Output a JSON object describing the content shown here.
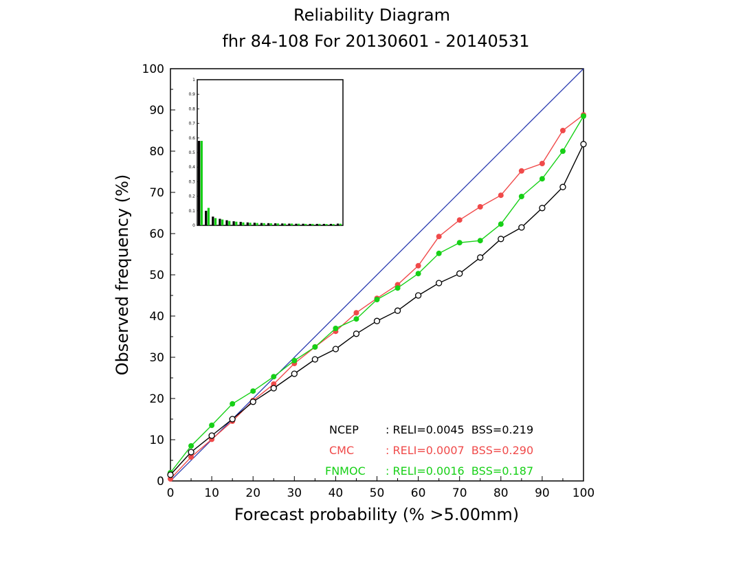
{
  "chart_data": {
    "type": "line",
    "title": "Reliability Diagram",
    "subtitle": "fhr 84-108 For 20130601 - 20140531",
    "xlabel": "Forecast probability (% >5.00mm)",
    "ylabel": "Observed frequency (%)",
    "xlim": [
      0,
      100
    ],
    "ylim": [
      0,
      100
    ],
    "xticks": [
      "0",
      "10",
      "20",
      "30",
      "40",
      "50",
      "60",
      "70",
      "80",
      "90",
      "100"
    ],
    "yticks": [
      "0",
      "10",
      "20",
      "30",
      "40",
      "50",
      "60",
      "70",
      "80",
      "90",
      "100"
    ],
    "grid": false,
    "diagonal_color": "#2a3bb0",
    "x": [
      0,
      5,
      10,
      15,
      20,
      25,
      30,
      35,
      40,
      45,
      50,
      55,
      60,
      65,
      70,
      75,
      80,
      85,
      90,
      95,
      100
    ],
    "series": [
      {
        "name": "NCEP",
        "color": "#000000",
        "marker": "open-circle",
        "values": [
          1.5,
          7.0,
          11.0,
          15.0,
          19.2,
          22.5,
          26.0,
          29.5,
          32.0,
          35.7,
          38.8,
          41.3,
          45.0,
          48.0,
          50.3,
          54.2,
          58.7,
          61.5,
          66.2,
          71.3,
          81.7
        ],
        "stats": ": RELI=0.0045  BSS=0.219"
      },
      {
        "name": "CMC",
        "color": "#f04a4a",
        "marker": "filled-circle",
        "values": [
          0.5,
          5.8,
          10.1,
          14.5,
          19.5,
          23.5,
          28.5,
          32.5,
          36.3,
          40.8,
          44.3,
          47.6,
          52.2,
          59.3,
          63.3,
          66.5,
          69.3,
          75.2,
          77.0,
          85.0,
          88.8
        ]
      },
      {
        "name": "FNMOC",
        "color": "#16d016",
        "marker": "filled-circle",
        "values": [
          2.0,
          8.5,
          13.5,
          18.7,
          21.8,
          25.3,
          29.2,
          32.5,
          37.0,
          39.3,
          44.0,
          46.8,
          50.3,
          55.2,
          57.8,
          58.3,
          62.3,
          69.0,
          73.3,
          80.0,
          88.5
        ]
      }
    ],
    "legend": {
      "placement": "bottom-right",
      "entries": [
        {
          "name": "NCEP",
          "stats": ": RELI=0.0045  BSS=0.219",
          "color": "#000000"
        },
        {
          "name": "CMC",
          "stats": ": RELI=0.0007  BSS=0.290",
          "color": "#f04a4a"
        },
        {
          "name": "FNMOC",
          "stats": ": RELI=0.0016  BSS=0.187",
          "color": "#16d016"
        }
      ]
    },
    "inset": {
      "type": "bar",
      "placement": "top-left",
      "ylim": [
        0,
        1
      ],
      "yticks": [
        "0",
        "0.1",
        "0.2",
        "0.3",
        "0.4",
        "0.5",
        "0.6",
        "0.7",
        "0.8",
        "0.9",
        "1"
      ],
      "bin_colors": [
        "#000000",
        "#16d016"
      ],
      "bins": [
        [
          0.58,
          0.58
        ],
        [
          0.1,
          0.12
        ],
        [
          0.06,
          0.05
        ],
        [
          0.045,
          0.04
        ],
        [
          0.035,
          0.03
        ],
        [
          0.028,
          0.025
        ],
        [
          0.024,
          0.02
        ],
        [
          0.02,
          0.018
        ],
        [
          0.018,
          0.016
        ],
        [
          0.016,
          0.015
        ],
        [
          0.015,
          0.014
        ],
        [
          0.014,
          0.013
        ],
        [
          0.013,
          0.012
        ],
        [
          0.012,
          0.012
        ],
        [
          0.011,
          0.011
        ],
        [
          0.011,
          0.01
        ],
        [
          0.01,
          0.01
        ],
        [
          0.01,
          0.01
        ],
        [
          0.01,
          0.009
        ],
        [
          0.01,
          0.009
        ],
        [
          0.012,
          0.011
        ]
      ]
    }
  }
}
